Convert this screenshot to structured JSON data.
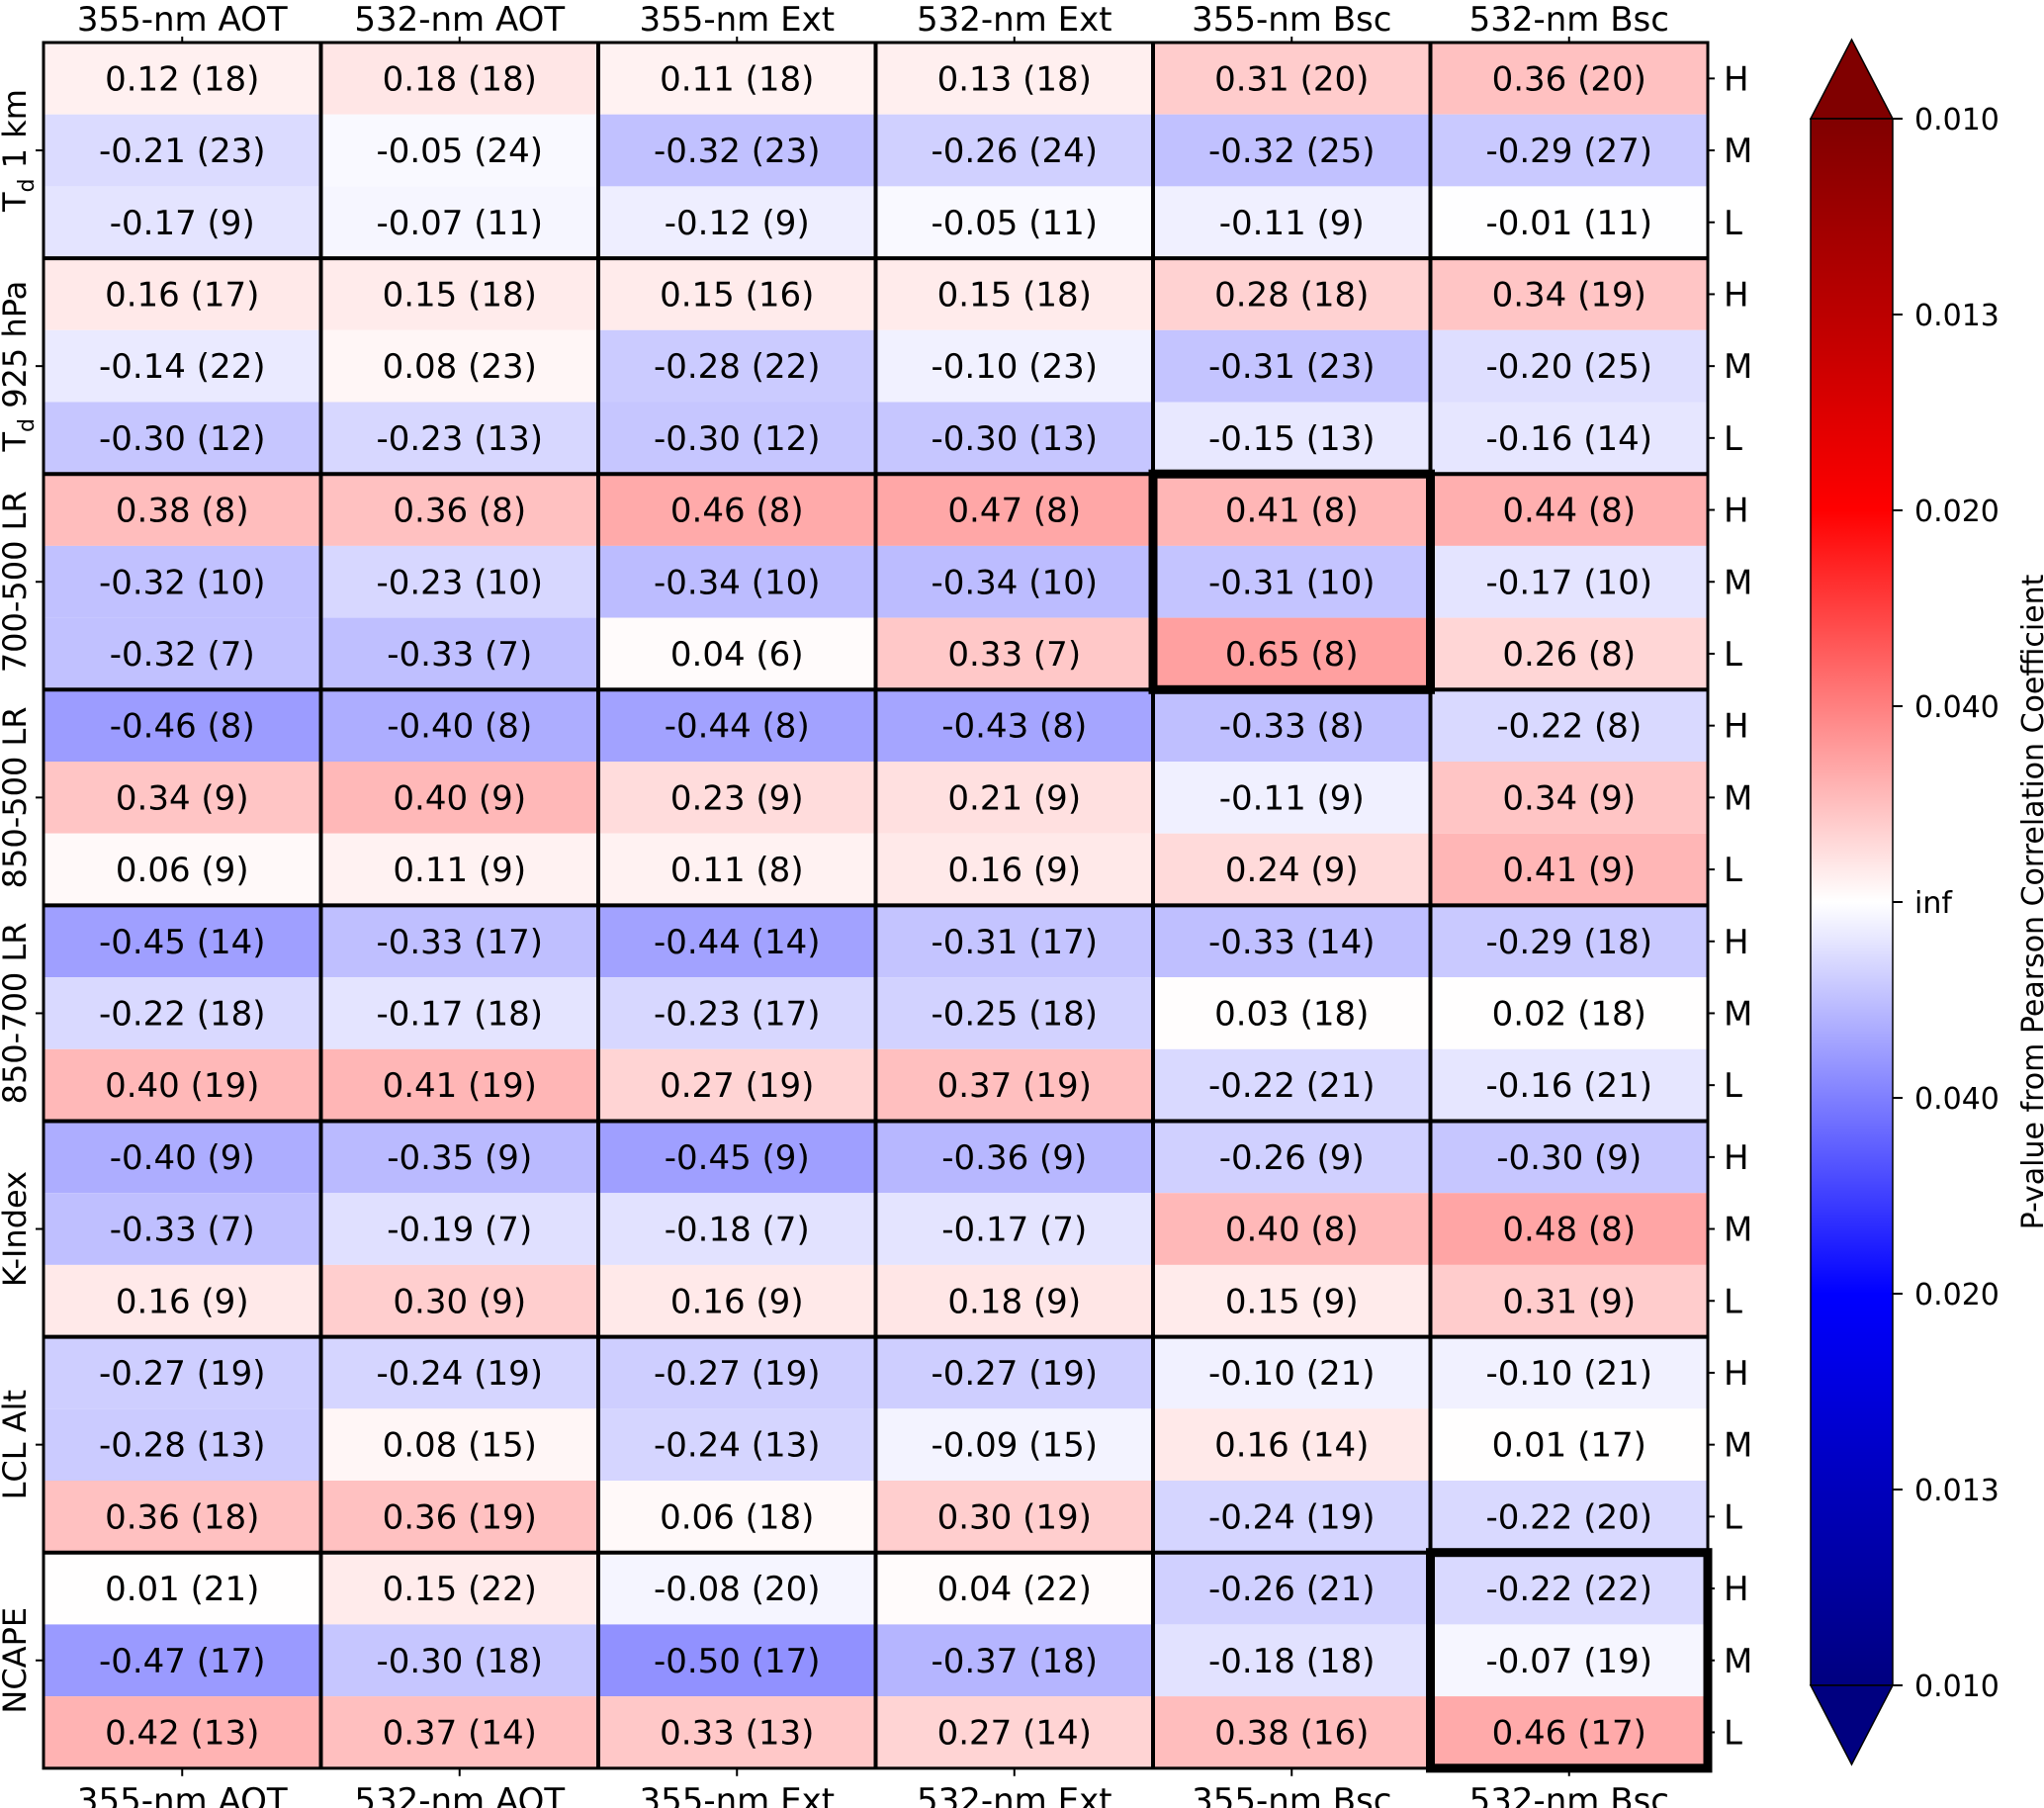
{
  "chart_data": {
    "type": "heatmap",
    "column_labels": [
      "355-nm AOT",
      "532-nm AOT",
      "355-nm Ext",
      "532-nm Ext",
      "355-nm Bsc",
      "532-nm Bsc"
    ],
    "row_labels": [
      "H",
      "M",
      "L"
    ],
    "groups": [
      {
        "label": "T",
        "label_sub": "d",
        "label_rest": " 1 km",
        "cells": [
          [
            "0.12 (18)",
            "0.18 (18)",
            "0.11 (18)",
            "0.13 (18)",
            "0.31 (20)",
            "0.36 (20)"
          ],
          [
            "-0.21 (23)",
            "-0.05 (24)",
            "-0.32 (23)",
            "-0.26 (24)",
            "-0.32 (25)",
            "-0.29 (27)"
          ],
          [
            "-0.17 (9)",
            "-0.07 (11)",
            "-0.12 (9)",
            "-0.05 (11)",
            "-0.11 (9)",
            "-0.01 (11)"
          ]
        ]
      },
      {
        "label": "T",
        "label_sub": "d",
        "label_rest": " 925 hPa",
        "cells": [
          [
            "0.16 (17)",
            "0.15 (18)",
            "0.15 (16)",
            "0.15 (18)",
            "0.28 (18)",
            "0.34 (19)"
          ],
          [
            "-0.14 (22)",
            "0.08 (23)",
            "-0.28 (22)",
            "-0.10 (23)",
            "-0.31 (23)",
            "-0.20 (25)"
          ],
          [
            "-0.30 (12)",
            "-0.23 (13)",
            "-0.30 (12)",
            "-0.30 (13)",
            "-0.15 (13)",
            "-0.16 (14)"
          ]
        ]
      },
      {
        "label": "700-500 LR",
        "cells": [
          [
            "0.38 (8)",
            "0.36 (8)",
            "0.46 (8)",
            "0.47 (8)",
            "0.41 (8)",
            "0.44 (8)"
          ],
          [
            "-0.32 (10)",
            "-0.23 (10)",
            "-0.34 (10)",
            "-0.34 (10)",
            "-0.31 (10)",
            "-0.17 (10)"
          ],
          [
            "-0.32 (7)",
            "-0.33 (7)",
            "0.04 (6)",
            "0.33 (7)",
            "0.65 (8)",
            "0.26 (8)"
          ]
        ]
      },
      {
        "label": "850-500 LR",
        "cells": [
          [
            "-0.46 (8)",
            "-0.40 (8)",
            "-0.44 (8)",
            "-0.43 (8)",
            "-0.33 (8)",
            "-0.22 (8)"
          ],
          [
            "0.34 (9)",
            "0.40 (9)",
            "0.23 (9)",
            "0.21 (9)",
            "-0.11 (9)",
            "0.34 (9)"
          ],
          [
            "0.06 (9)",
            "0.11 (9)",
            "0.11 (8)",
            "0.16 (9)",
            "0.24 (9)",
            "0.41 (9)"
          ]
        ]
      },
      {
        "label": "850-700 LR",
        "cells": [
          [
            "-0.45 (14)",
            "-0.33 (17)",
            "-0.44 (14)",
            "-0.31 (17)",
            "-0.33 (14)",
            "-0.29 (18)"
          ],
          [
            "-0.22 (18)",
            "-0.17 (18)",
            "-0.23 (17)",
            "-0.25 (18)",
            "0.03 (18)",
            "0.02 (18)"
          ],
          [
            "0.40 (19)",
            "0.41 (19)",
            "0.27 (19)",
            "0.37 (19)",
            "-0.22 (21)",
            "-0.16 (21)"
          ]
        ]
      },
      {
        "label": "K-Index",
        "cells": [
          [
            "-0.40 (9)",
            "-0.35 (9)",
            "-0.45 (9)",
            "-0.36 (9)",
            "-0.26 (9)",
            "-0.30 (9)"
          ],
          [
            "-0.33 (7)",
            "-0.19 (7)",
            "-0.18 (7)",
            "-0.17 (7)",
            "0.40 (8)",
            "0.48 (8)"
          ],
          [
            "0.16 (9)",
            "0.30 (9)",
            "0.16 (9)",
            "0.18 (9)",
            "0.15 (9)",
            "0.31 (9)"
          ]
        ]
      },
      {
        "label": "LCL Alt",
        "cells": [
          [
            "-0.27 (19)",
            "-0.24 (19)",
            "-0.27 (19)",
            "-0.27 (19)",
            "-0.10 (21)",
            "-0.10 (21)"
          ],
          [
            "-0.28 (13)",
            "0.08 (15)",
            "-0.24 (13)",
            "-0.09 (15)",
            "0.16 (14)",
            "0.01 (17)"
          ],
          [
            "0.36 (18)",
            "0.36 (19)",
            "0.06 (18)",
            "0.30 (19)",
            "-0.24 (19)",
            "-0.22 (20)"
          ]
        ]
      },
      {
        "label": "NCAPE",
        "cells": [
          [
            "0.01 (21)",
            "0.15 (22)",
            "-0.08 (20)",
            "0.04 (22)",
            "-0.26 (21)",
            "-0.22 (22)"
          ],
          [
            "-0.47 (17)",
            "-0.30 (18)",
            "-0.50 (17)",
            "-0.37 (18)",
            "-0.18 (18)",
            "-0.07 (19)"
          ],
          [
            "0.42 (13)",
            "0.37 (14)",
            "0.33 (13)",
            "0.27 (14)",
            "0.38 (16)",
            "0.46 (17)"
          ]
        ]
      }
    ],
    "highlighted_blocks": [
      {
        "group": 2,
        "column": 4
      },
      {
        "group": 7,
        "column": 5
      }
    ],
    "colorbar": {
      "label": "P-value from Pearson Correlation Coefficient",
      "tick_labels": [
        "0.010",
        "0.013",
        "0.020",
        "0.040",
        "inf",
        "0.040",
        "0.020",
        "0.013",
        "0.010"
      ],
      "colormap": "seismic",
      "extend": "both"
    }
  }
}
